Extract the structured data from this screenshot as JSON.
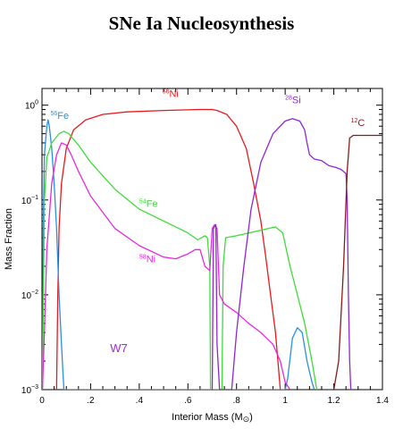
{
  "page": {
    "title": "SNe Ia Nucleosynthesis"
  },
  "chart_data": {
    "type": "line",
    "title": "SNe Ia Nucleosynthesis",
    "xlabel": "Interior Mass (M⊙)",
    "xlabel_main": "Interior Mass (M",
    "xlabel_sym": "⊙",
    "xlabel_close": ")",
    "ylabel": "Mass Fraction",
    "xlim": [
      0,
      1.4
    ],
    "ylim": [
      0.001,
      1.5
    ],
    "yscale": "log",
    "grid": false,
    "x_ticks": [
      {
        "value": 0,
        "label": "0"
      },
      {
        "value": 0.2,
        "label": ".2"
      },
      {
        "value": 0.4,
        "label": ".4"
      },
      {
        "value": 0.6,
        "label": ".6"
      },
      {
        "value": 0.8,
        "label": ".8"
      },
      {
        "value": 1.0,
        "label": "1"
      },
      {
        "value": 1.2,
        "label": "1.2"
      },
      {
        "value": 1.4,
        "label": "1.4"
      }
    ],
    "y_ticks": [
      {
        "value": 1,
        "base": "10",
        "exp": "0"
      },
      {
        "value": 0.1,
        "base": "10",
        "exp": "−1"
      },
      {
        "value": 0.01,
        "base": "10",
        "exp": "−2"
      },
      {
        "value": 0.001,
        "base": "10",
        "exp": "−3"
      }
    ],
    "annotation": {
      "text": "W7",
      "x": 0.28,
      "y": 0.0025,
      "color": "#9a2bd0"
    },
    "series": [
      {
        "key": "ni56",
        "name": "56Ni",
        "label_sup": "56",
        "label_main": "Ni",
        "label_pos": {
          "x": 0.495,
          "y": 1.22
        },
        "color": "#e8191e",
        "points": [
          [
            0.06,
            0.001
          ],
          [
            0.065,
            0.01
          ],
          [
            0.07,
            0.05
          ],
          [
            0.08,
            0.15
          ],
          [
            0.1,
            0.35
          ],
          [
            0.13,
            0.55
          ],
          [
            0.18,
            0.7
          ],
          [
            0.25,
            0.8
          ],
          [
            0.35,
            0.85
          ],
          [
            0.5,
            0.88
          ],
          [
            0.65,
            0.9
          ],
          [
            0.7,
            0.9
          ],
          [
            0.72,
            0.88
          ],
          [
            0.76,
            0.8
          ],
          [
            0.8,
            0.6
          ],
          [
            0.84,
            0.35
          ],
          [
            0.87,
            0.15
          ],
          [
            0.9,
            0.06
          ],
          [
            0.92,
            0.025
          ],
          [
            0.94,
            0.01
          ],
          [
            0.96,
            0.004
          ],
          [
            0.97,
            0.002
          ],
          [
            0.98,
            0.001
          ]
        ]
      },
      {
        "key": "fe56",
        "name": "56Fe",
        "label_sup": "56",
        "label_main": "Fe",
        "label_pos": {
          "x": 0.035,
          "y": 0.72
        },
        "color": "#2a8fe0",
        "points": [
          [
            0.002,
            0.001
          ],
          [
            0.005,
            0.05
          ],
          [
            0.01,
            0.3
          ],
          [
            0.02,
            0.6
          ],
          [
            0.025,
            0.7
          ],
          [
            0.03,
            0.6
          ],
          [
            0.04,
            0.35
          ],
          [
            0.05,
            0.15
          ],
          [
            0.06,
            0.05
          ],
          [
            0.07,
            0.01
          ],
          [
            0.08,
            0.003
          ],
          [
            0.09,
            0.001
          ],
          [
            1.0,
            0.001
          ],
          [
            1.01,
            0.0013
          ],
          [
            1.03,
            0.0035
          ],
          [
            1.05,
            0.0045
          ],
          [
            1.07,
            0.004
          ],
          [
            1.09,
            0.002
          ],
          [
            1.11,
            0.0012
          ],
          [
            1.12,
            0.001
          ]
        ]
      },
      {
        "key": "fe54",
        "name": "54Fe",
        "label_sup": "54",
        "label_main": "Fe",
        "label_pos": {
          "x": 0.4,
          "y": 0.085
        },
        "color": "#3ddc3a",
        "points": [
          [
            0.002,
            0.001
          ],
          [
            0.006,
            0.01
          ],
          [
            0.01,
            0.1
          ],
          [
            0.02,
            0.28
          ],
          [
            0.04,
            0.4
          ],
          [
            0.07,
            0.5
          ],
          [
            0.09,
            0.53
          ],
          [
            0.11,
            0.5
          ],
          [
            0.15,
            0.38
          ],
          [
            0.2,
            0.25
          ],
          [
            0.3,
            0.13
          ],
          [
            0.4,
            0.08
          ],
          [
            0.5,
            0.06
          ],
          [
            0.6,
            0.045
          ],
          [
            0.64,
            0.038
          ],
          [
            0.67,
            0.042
          ],
          [
            0.68,
            0.04
          ],
          [
            0.69,
            0.02
          ],
          [
            0.693,
            0.001
          ],
          [
            0.74,
            0.001
          ],
          [
            0.745,
            0.02
          ],
          [
            0.755,
            0.04
          ],
          [
            0.8,
            0.042
          ],
          [
            0.9,
            0.048
          ],
          [
            0.96,
            0.052
          ],
          [
            0.99,
            0.045
          ],
          [
            1.02,
            0.02
          ],
          [
            1.05,
            0.01
          ],
          [
            1.08,
            0.005
          ],
          [
            1.11,
            0.002
          ],
          [
            1.13,
            0.001
          ]
        ]
      },
      {
        "key": "ni58",
        "name": "58Ni",
        "label_sup": "58",
        "label_main": "Ni",
        "label_pos": {
          "x": 0.4,
          "y": 0.022
        },
        "color": "#e629e0",
        "points": [
          [
            0.002,
            0.001
          ],
          [
            0.01,
            0.004
          ],
          [
            0.02,
            0.03
          ],
          [
            0.04,
            0.15
          ],
          [
            0.06,
            0.3
          ],
          [
            0.08,
            0.4
          ],
          [
            0.1,
            0.38
          ],
          [
            0.12,
            0.3
          ],
          [
            0.15,
            0.2
          ],
          [
            0.2,
            0.11
          ],
          [
            0.3,
            0.05
          ],
          [
            0.4,
            0.033
          ],
          [
            0.5,
            0.025
          ],
          [
            0.55,
            0.024
          ],
          [
            0.6,
            0.027
          ],
          [
            0.63,
            0.03
          ],
          [
            0.65,
            0.03
          ],
          [
            0.67,
            0.02
          ],
          [
            0.69,
            0.018
          ],
          [
            0.7,
            0.05
          ],
          [
            0.71,
            0.055
          ],
          [
            0.72,
            0.05
          ],
          [
            0.73,
            0.01
          ],
          [
            0.75,
            0.008
          ],
          [
            0.8,
            0.0065
          ],
          [
            0.85,
            0.005
          ],
          [
            0.9,
            0.004
          ],
          [
            0.95,
            0.003
          ],
          [
            0.98,
            0.002
          ],
          [
            1.0,
            0.0012
          ],
          [
            1.02,
            0.001
          ]
        ]
      },
      {
        "key": "si28",
        "name": "28Si",
        "label_sup": "28",
        "label_main": "Si",
        "label_pos": {
          "x": 1.0,
          "y": 1.05
        },
        "color": "#8e26d4",
        "points": [
          [
            0.7,
            0.001
          ],
          [
            0.705,
            0.05
          ],
          [
            0.715,
            0.055
          ],
          [
            0.72,
            0.003
          ],
          [
            0.73,
            0.001
          ],
          [
            0.78,
            0.001
          ],
          [
            0.8,
            0.004
          ],
          [
            0.83,
            0.02
          ],
          [
            0.86,
            0.08
          ],
          [
            0.9,
            0.25
          ],
          [
            0.95,
            0.5
          ],
          [
            1.0,
            0.68
          ],
          [
            1.03,
            0.72
          ],
          [
            1.06,
            0.68
          ],
          [
            1.08,
            0.55
          ],
          [
            1.09,
            0.4
          ],
          [
            1.1,
            0.3
          ],
          [
            1.12,
            0.27
          ],
          [
            1.15,
            0.26
          ],
          [
            1.18,
            0.23
          ],
          [
            1.21,
            0.22
          ],
          [
            1.23,
            0.21
          ],
          [
            1.25,
            0.19
          ],
          [
            1.255,
            0.1
          ],
          [
            1.26,
            0.01
          ],
          [
            1.265,
            0.002
          ],
          [
            1.27,
            0.001
          ]
        ]
      },
      {
        "key": "c12",
        "name": "12C",
        "label_sup": "12",
        "label_main": "C",
        "label_pos": {
          "x": 1.27,
          "y": 0.6
        },
        "color": "#8b1a1a",
        "points": [
          [
            1.2,
            0.001
          ],
          [
            1.22,
            0.002
          ],
          [
            1.24,
            0.02
          ],
          [
            1.255,
            0.2
          ],
          [
            1.265,
            0.45
          ],
          [
            1.28,
            0.48
          ],
          [
            1.3,
            0.48
          ],
          [
            1.35,
            0.48
          ],
          [
            1.4,
            0.48
          ]
        ]
      }
    ]
  }
}
